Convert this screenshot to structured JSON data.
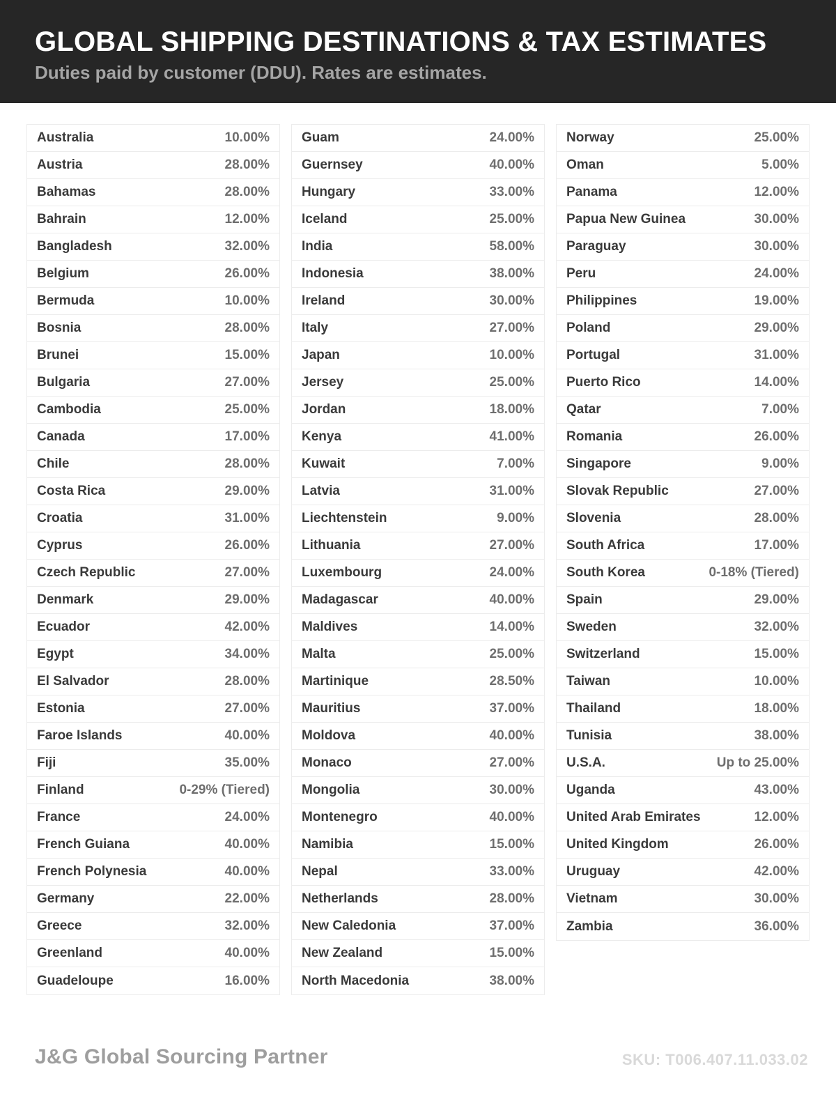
{
  "header": {
    "title": "GLOBAL SHIPPING DESTINATIONS & TAX ESTIMATES",
    "subtitle": "Duties paid by customer (DDU). Rates are estimates."
  },
  "colors": {
    "header_background": "#262626",
    "title_text": "#ffffff",
    "subtitle_text": "#a5a5a5",
    "country_text": "#3a3a3a",
    "rate_text": "#6e6e6e",
    "row_border": "#ececec",
    "footer_brand_text": "#9e9e9e",
    "footer_sku_text": "#d9d9d9"
  },
  "table": {
    "columns": [
      {
        "rows": [
          {
            "country": "Australia",
            "rate": "10.00%"
          },
          {
            "country": "Austria",
            "rate": "28.00%"
          },
          {
            "country": "Bahamas",
            "rate": "28.00%"
          },
          {
            "country": "Bahrain",
            "rate": "12.00%"
          },
          {
            "country": "Bangladesh",
            "rate": "32.00%"
          },
          {
            "country": "Belgium",
            "rate": "26.00%"
          },
          {
            "country": "Bermuda",
            "rate": "10.00%"
          },
          {
            "country": "Bosnia",
            "rate": "28.00%"
          },
          {
            "country": "Brunei",
            "rate": "15.00%"
          },
          {
            "country": "Bulgaria",
            "rate": "27.00%"
          },
          {
            "country": "Cambodia",
            "rate": "25.00%"
          },
          {
            "country": "Canada",
            "rate": "17.00%"
          },
          {
            "country": "Chile",
            "rate": "28.00%"
          },
          {
            "country": "Costa Rica",
            "rate": "29.00%"
          },
          {
            "country": "Croatia",
            "rate": "31.00%"
          },
          {
            "country": "Cyprus",
            "rate": "26.00%"
          },
          {
            "country": "Czech Republic",
            "rate": "27.00%"
          },
          {
            "country": "Denmark",
            "rate": "29.00%"
          },
          {
            "country": "Ecuador",
            "rate": "42.00%"
          },
          {
            "country": "Egypt",
            "rate": "34.00%"
          },
          {
            "country": "El Salvador",
            "rate": "28.00%"
          },
          {
            "country": "Estonia",
            "rate": "27.00%"
          },
          {
            "country": "Faroe Islands",
            "rate": "40.00%"
          },
          {
            "country": "Fiji",
            "rate": "35.00%"
          },
          {
            "country": "Finland",
            "rate": "0-29% (Tiered)"
          },
          {
            "country": "France",
            "rate": "24.00%"
          },
          {
            "country": "French Guiana",
            "rate": "40.00%"
          },
          {
            "country": "French Polynesia",
            "rate": "40.00%"
          },
          {
            "country": "Germany",
            "rate": "22.00%"
          },
          {
            "country": "Greece",
            "rate": "32.00%"
          },
          {
            "country": "Greenland",
            "rate": "40.00%"
          },
          {
            "country": "Guadeloupe",
            "rate": "16.00%"
          }
        ]
      },
      {
        "rows": [
          {
            "country": "Guam",
            "rate": "24.00%"
          },
          {
            "country": "Guernsey",
            "rate": "40.00%"
          },
          {
            "country": "Hungary",
            "rate": "33.00%"
          },
          {
            "country": "Iceland",
            "rate": "25.00%"
          },
          {
            "country": "India",
            "rate": "58.00%"
          },
          {
            "country": "Indonesia",
            "rate": "38.00%"
          },
          {
            "country": "Ireland",
            "rate": "30.00%"
          },
          {
            "country": "Italy",
            "rate": "27.00%"
          },
          {
            "country": "Japan",
            "rate": "10.00%"
          },
          {
            "country": "Jersey",
            "rate": "25.00%"
          },
          {
            "country": "Jordan",
            "rate": "18.00%"
          },
          {
            "country": "Kenya",
            "rate": "41.00%"
          },
          {
            "country": "Kuwait",
            "rate": "7.00%"
          },
          {
            "country": "Latvia",
            "rate": "31.00%"
          },
          {
            "country": "Liechtenstein",
            "rate": "9.00%"
          },
          {
            "country": "Lithuania",
            "rate": "27.00%"
          },
          {
            "country": "Luxembourg",
            "rate": "24.00%"
          },
          {
            "country": "Madagascar",
            "rate": "40.00%"
          },
          {
            "country": "Maldives",
            "rate": "14.00%"
          },
          {
            "country": "Malta",
            "rate": "25.00%"
          },
          {
            "country": "Martinique",
            "rate": "28.50%"
          },
          {
            "country": "Mauritius",
            "rate": "37.00%"
          },
          {
            "country": "Moldova",
            "rate": "40.00%"
          },
          {
            "country": "Monaco",
            "rate": "27.00%"
          },
          {
            "country": "Mongolia",
            "rate": "30.00%"
          },
          {
            "country": "Montenegro",
            "rate": "40.00%"
          },
          {
            "country": "Namibia",
            "rate": "15.00%"
          },
          {
            "country": "Nepal",
            "rate": "33.00%"
          },
          {
            "country": "Netherlands",
            "rate": "28.00%"
          },
          {
            "country": "New Caledonia",
            "rate": "37.00%"
          },
          {
            "country": "New Zealand",
            "rate": "15.00%"
          },
          {
            "country": "North Macedonia",
            "rate": "38.00%"
          }
        ]
      },
      {
        "rows": [
          {
            "country": "Norway",
            "rate": "25.00%"
          },
          {
            "country": "Oman",
            "rate": "5.00%"
          },
          {
            "country": "Panama",
            "rate": "12.00%"
          },
          {
            "country": "Papua New Guinea",
            "rate": "30.00%"
          },
          {
            "country": "Paraguay",
            "rate": "30.00%"
          },
          {
            "country": "Peru",
            "rate": "24.00%"
          },
          {
            "country": "Philippines",
            "rate": "19.00%"
          },
          {
            "country": "Poland",
            "rate": "29.00%"
          },
          {
            "country": "Portugal",
            "rate": "31.00%"
          },
          {
            "country": "Puerto Rico",
            "rate": "14.00%"
          },
          {
            "country": "Qatar",
            "rate": "7.00%"
          },
          {
            "country": "Romania",
            "rate": "26.00%"
          },
          {
            "country": "Singapore",
            "rate": "9.00%"
          },
          {
            "country": "Slovak Republic",
            "rate": "27.00%"
          },
          {
            "country": "Slovenia",
            "rate": "28.00%"
          },
          {
            "country": "South Africa",
            "rate": "17.00%"
          },
          {
            "country": "South Korea",
            "rate": "0-18% (Tiered)"
          },
          {
            "country": "Spain",
            "rate": "29.00%"
          },
          {
            "country": "Sweden",
            "rate": "32.00%"
          },
          {
            "country": "Switzerland",
            "rate": "15.00%"
          },
          {
            "country": "Taiwan",
            "rate": "10.00%"
          },
          {
            "country": "Thailand",
            "rate": "18.00%"
          },
          {
            "country": "Tunisia",
            "rate": "38.00%"
          },
          {
            "country": "U.S.A.",
            "rate": "Up to 25.00%"
          },
          {
            "country": "Uganda",
            "rate": "43.00%"
          },
          {
            "country": "United Arab Emirates",
            "rate": "12.00%"
          },
          {
            "country": "United Kingdom",
            "rate": "26.00%"
          },
          {
            "country": "Uruguay",
            "rate": "42.00%"
          },
          {
            "country": "Vietnam",
            "rate": "30.00%"
          },
          {
            "country": "Zambia",
            "rate": "36.00%"
          }
        ]
      }
    ]
  },
  "footer": {
    "brand": "J&G Global Sourcing Partner",
    "sku": "SKU: T006.407.11.033.02"
  }
}
